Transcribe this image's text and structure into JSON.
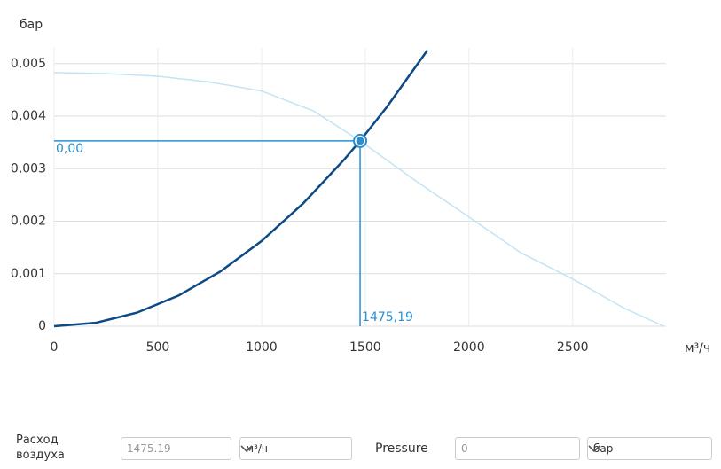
{
  "chart_data": {
    "type": "line",
    "y_axis_label": "бар",
    "x_axis_label": "м³/ч",
    "xlim": [
      0,
      2950
    ],
    "ylim": [
      0,
      0.0053
    ],
    "xticks": [
      0,
      500,
      1000,
      1500,
      2000,
      2500
    ],
    "yticks": [
      0,
      {
        "value": 0.001,
        "label": "0,001"
      },
      {
        "value": 0.002,
        "label": "0,002"
      },
      {
        "value": 0.003,
        "label": "0,003"
      },
      {
        "value": 0.004,
        "label": "0,004"
      },
      {
        "value": 0.005,
        "label": "0,005"
      }
    ],
    "grid": true,
    "series": [
      {
        "color": "#c3e4f4",
        "x": [
          0,
          250,
          500,
          750,
          1000,
          1250,
          1475.19,
          1750,
          2000,
          2250,
          2500,
          2750,
          2940
        ],
        "values": [
          0.00483,
          0.00481,
          0.00476,
          0.00465,
          0.00448,
          0.0041,
          0.00353,
          0.00275,
          0.00208,
          0.0014,
          0.0009,
          0.00034,
          0
        ]
      },
      {
        "color": "#0c4a86",
        "x": [
          0,
          200,
          400,
          600,
          800,
          1000,
          1200,
          1400,
          1475.19,
          1600,
          1800
        ],
        "values": [
          0,
          6.49e-05,
          0.00026,
          0.000584,
          0.001038,
          0.001622,
          0.002336,
          0.00318,
          0.00353,
          0.004153,
          0.005256
        ]
      }
    ],
    "operating_point": {
      "x": 1475.19,
      "y": 0.00353,
      "x_label": "1475,19",
      "y_label": "0,00",
      "color": "#2a8fd1"
    }
  },
  "form": {
    "flow_label": "Расход воздуха",
    "flow_value": "1475.19",
    "flow_unit": "м³/ч",
    "pressure_label": "Pressure",
    "pressure_value": "0",
    "pressure_unit": "бар"
  }
}
